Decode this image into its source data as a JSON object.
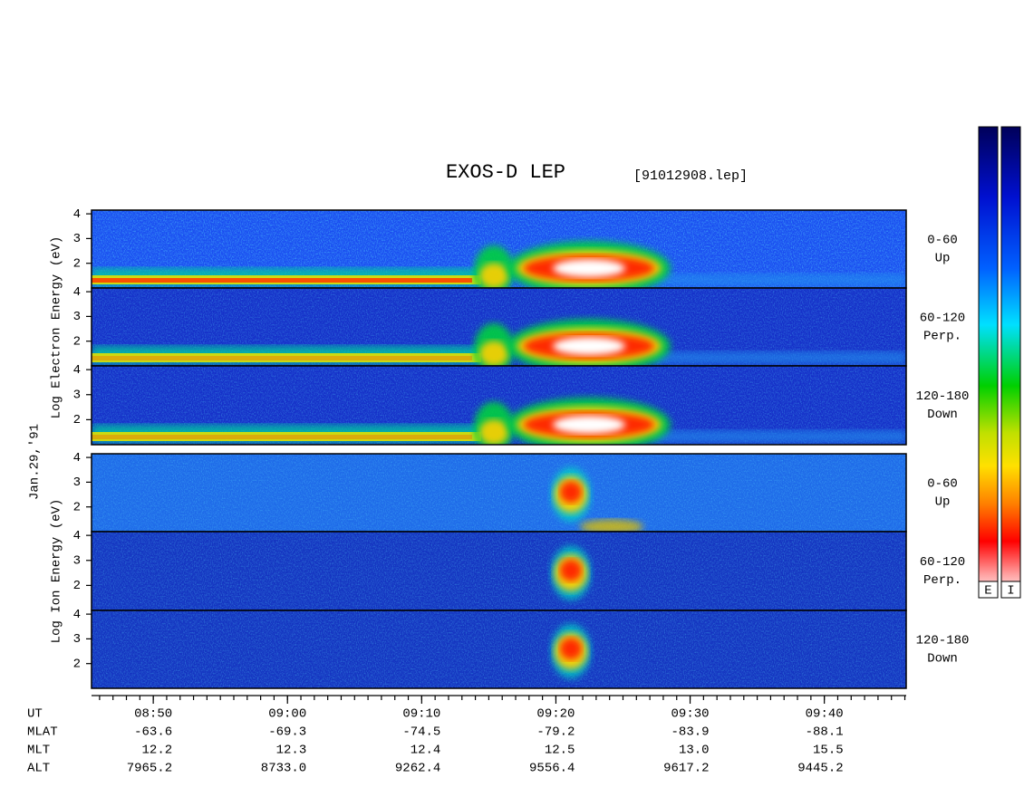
{
  "chart_data": {
    "type": "spectrogram",
    "title": "EXOS-D LEP",
    "file_label": "[91012908.lep]",
    "date_label": "Jan.29,'91",
    "ylim": [
      1,
      4.15
    ],
    "yticks": [
      2,
      3,
      4
    ],
    "groups": [
      {
        "ylabel": "Log Electron Energy (eV)",
        "panels": [
          {
            "pitch_angle": "0-60",
            "direction": "Up"
          },
          {
            "pitch_angle": "60-120",
            "direction": "Perp."
          },
          {
            "pitch_angle": "120-180",
            "direction": "Down"
          }
        ]
      },
      {
        "ylabel": "Log Ion Energy (eV)",
        "panels": [
          {
            "pitch_angle": "0-60",
            "direction": "Up"
          },
          {
            "pitch_angle": "60-120",
            "direction": "Perp."
          },
          {
            "pitch_angle": "120-180",
            "direction": "Down"
          }
        ]
      }
    ],
    "xlim": [
      525.4,
      586.1
    ],
    "xticks": [
      {
        "value": 530,
        "label": "08:50"
      },
      {
        "value": 540,
        "label": "09:00"
      },
      {
        "value": 550,
        "label": "09:10"
      },
      {
        "value": 560,
        "label": "09:20"
      },
      {
        "value": 570,
        "label": "09:30"
      },
      {
        "value": 580,
        "label": "09:40"
      }
    ],
    "xtick_row_label": "UT",
    "orbit_rows": [
      {
        "label": "MLAT",
        "values": [
          -63.6,
          -69.3,
          -74.5,
          -79.2,
          -83.9,
          -88.1
        ]
      },
      {
        "label": "MLT",
        "values": [
          12.2,
          12.3,
          12.4,
          12.5,
          13.0,
          15.5
        ],
        "value_labels": [
          "12.2",
          "12.3",
          "12.4",
          "12.5",
          "13.0",
          "15.5"
        ]
      },
      {
        "label": "ALT",
        "values": [
          7965.2,
          8733.0,
          9262.4,
          9556.4,
          9617.2,
          9445.2
        ],
        "value_labels": [
          "7965.2",
          "8733.0",
          "9262.4",
          "9556.4",
          "9617.2",
          "9445.2"
        ]
      }
    ],
    "colorbars": [
      {
        "label": "E"
      },
      {
        "label": "I"
      }
    ]
  }
}
